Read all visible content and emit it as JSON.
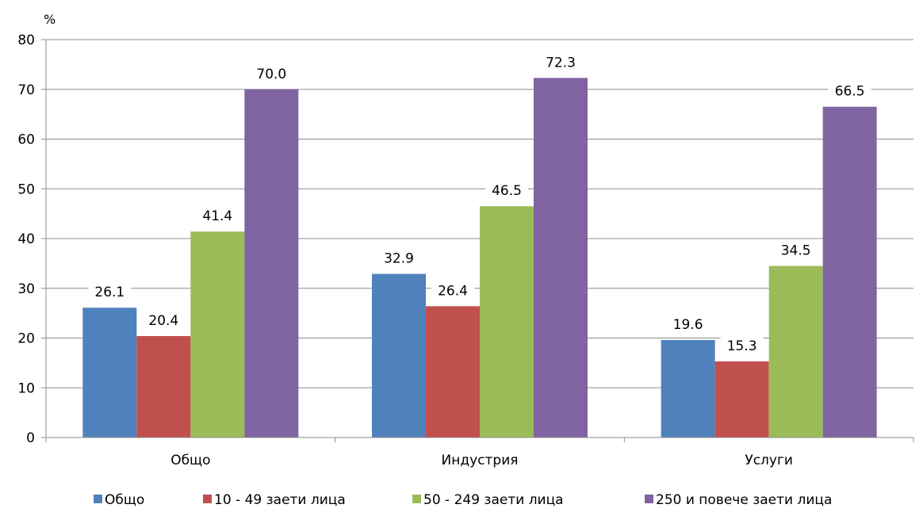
{
  "chart_data": {
    "type": "bar",
    "y_unit": "%",
    "categories": [
      "Общо",
      "Индустрия",
      "Услуги"
    ],
    "series": [
      {
        "name": "Общо",
        "color": "#4F81BD",
        "values": [
          26.1,
          32.9,
          19.6
        ]
      },
      {
        "name": "10 - 49 заети лица",
        "color": "#C0504D",
        "values": [
          20.4,
          26.4,
          15.3
        ]
      },
      {
        "name": "50 - 249 заети лица",
        "color": "#9BBB59",
        "values": [
          41.4,
          46.5,
          34.5
        ]
      },
      {
        "name": "250 и повече заети лица",
        "color": "#8064A2",
        "values": [
          70.0,
          72.3,
          66.5
        ]
      }
    ],
    "ylim": [
      0,
      80
    ],
    "yticks": [
      0,
      10,
      20,
      30,
      40,
      50,
      60,
      70,
      80
    ],
    "grid": true,
    "legend_position": "bottom",
    "data_labels": true
  }
}
